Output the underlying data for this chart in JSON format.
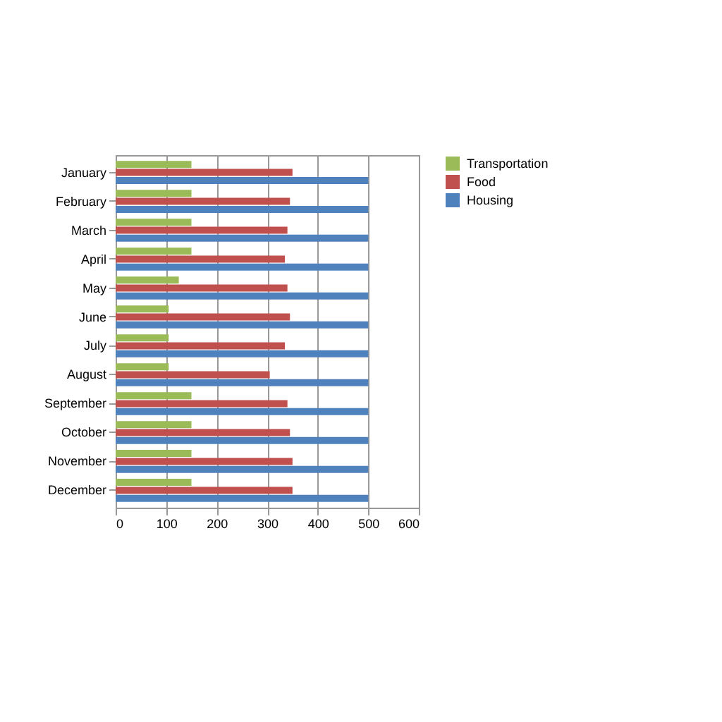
{
  "chart_data": {
    "type": "bar",
    "orientation": "horizontal",
    "categories": [
      "January",
      "February",
      "March",
      "April",
      "May",
      "June",
      "July",
      "August",
      "September",
      "October",
      "November",
      "December"
    ],
    "series": [
      {
        "name": "Transportation",
        "color": "#9bbb59",
        "values": [
          150,
          150,
          150,
          150,
          125,
          105,
          105,
          105,
          150,
          150,
          150,
          150
        ]
      },
      {
        "name": "Food",
        "color": "#c0504d",
        "values": [
          350,
          345,
          340,
          335,
          340,
          345,
          335,
          305,
          340,
          345,
          350,
          350
        ]
      },
      {
        "name": "Housing",
        "color": "#4f81bd",
        "values": [
          500,
          500,
          500,
          500,
          500,
          500,
          500,
          500,
          500,
          500,
          500,
          500
        ]
      }
    ],
    "xlim": [
      0,
      600
    ],
    "xticks": [
      0,
      100,
      200,
      300,
      400,
      500,
      600
    ],
    "grid": "x",
    "legend": "right"
  }
}
